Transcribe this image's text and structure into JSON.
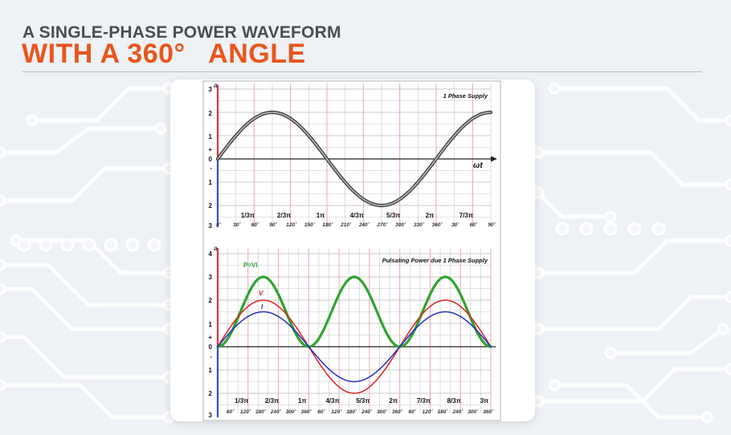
{
  "header": {
    "title_line1": "A SINGLE-PHASE POWER WAVEFORM",
    "title_line2": "WITH A 360°   ANGLE"
  },
  "colors": {
    "accent": "#e8561c",
    "title_gray": "#4a4d52",
    "grid_gray": "#c8c8c8",
    "grid_pink": "#e6a8b4",
    "axis_red": "#e0343a",
    "axis_blue": "#2f4fc4",
    "curve_power": "#2fa32f",
    "curve_voltage": "#e02020",
    "curve_current": "#2030c0"
  },
  "chart_data": [
    {
      "type": "line",
      "title": "1 Phase Supply",
      "xlabel": "ωt",
      "axis_letter": "a",
      "y_tick_labels": [
        "3",
        "2",
        "1",
        "+",
        "0",
        "-",
        "1",
        "2",
        "3"
      ],
      "pi_labels": [
        "1/3π",
        "2/3π",
        "1π",
        "4/3π",
        "5/3π",
        "2π",
        "7/3π"
      ],
      "degree_labels": [
        "0˚",
        "30˚",
        "60˚",
        "90˚",
        "120˚",
        "150˚",
        "180˚",
        "210˚",
        "240˚",
        "270˚",
        "300˚",
        "330˚",
        "360˚",
        "30˚",
        "60˚",
        "90˚"
      ],
      "x_degrees": [
        0,
        450
      ],
      "ylim": [
        -3,
        3
      ],
      "series": [
        {
          "name": "supply",
          "amplitude": 2,
          "function": "sin"
        }
      ]
    },
    {
      "type": "line",
      "title": "Pulsating Power due 1 Phase Supply",
      "axis_letter": "a",
      "y_tick_labels": [
        "4",
        "3",
        "2",
        "1",
        "+",
        "0",
        "-",
        "1",
        "2",
        "3"
      ],
      "pi_labels": [
        "1/3π",
        "2/3π",
        "1π",
        "4/3π",
        "5/3π",
        "2π",
        "7/3π",
        "8/3π",
        "3π"
      ],
      "degree_labels": [
        "60˚",
        "120˚",
        "180˚",
        "240˚",
        "300˚",
        "360˚",
        "60˚",
        "120˚",
        "180˚",
        "240˚",
        "300˚",
        "360˚",
        "60˚",
        "120˚",
        "180˚",
        "240˚",
        "300˚",
        "360˚"
      ],
      "x_degrees": [
        0,
        540
      ],
      "ylim": [
        -3,
        4
      ],
      "series": [
        {
          "name": "P = VI",
          "label": "P=VI",
          "peak": 3,
          "function": "sin^2 (period 180°)"
        },
        {
          "name": "V",
          "label": "V",
          "amplitude": 2,
          "function": "sin"
        },
        {
          "name": "I",
          "label": "I",
          "amplitude": 1.5,
          "function": "sin"
        }
      ]
    }
  ]
}
